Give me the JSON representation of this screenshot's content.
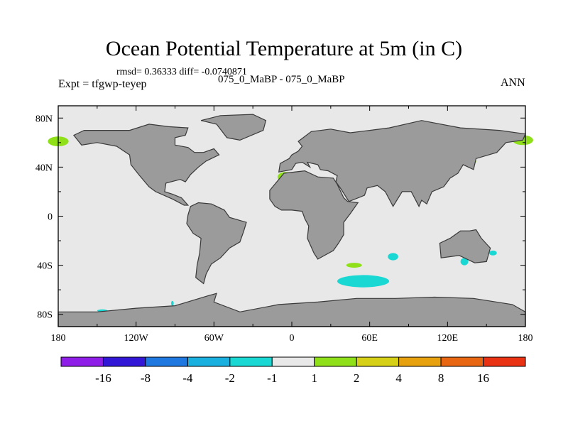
{
  "title": "Ocean Potential Temperature at 5m (in C)",
  "stats_line": "rmsd= 0.36333 diff= -0.0740871",
  "experiment_label": "Expt = tfgwp-teyep",
  "case_label": "075_0_MaBP - 075_0_MaBP",
  "season_label": "ANN",
  "chart_data": {
    "type": "heatmap",
    "projection": "cylindrical-equidistant",
    "xlim": [
      -180,
      180
    ],
    "ylim": [
      -90,
      90
    ],
    "x_ticks": [
      {
        "value": -180,
        "label": "180"
      },
      {
        "value": -120,
        "label": "120W"
      },
      {
        "value": -60,
        "label": "60W"
      },
      {
        "value": 0,
        "label": "0"
      },
      {
        "value": 60,
        "label": "60E"
      },
      {
        "value": 120,
        "label": "120E"
      },
      {
        "value": 180,
        "label": "180"
      }
    ],
    "y_ticks": [
      {
        "value": 80,
        "label": "80N"
      },
      {
        "value": 40,
        "label": "40N"
      },
      {
        "value": 0,
        "label": "0"
      },
      {
        "value": -40,
        "label": "40S"
      },
      {
        "value": -80,
        "label": "80S"
      }
    ],
    "colorbar": {
      "colors": [
        "#8f1fe8",
        "#3218d6",
        "#1f78e0",
        "#19b0e0",
        "#19d8d3",
        "#e8e8e8",
        "#8fe019",
        "#d6d017",
        "#e8a10e",
        "#e86511",
        "#e83213"
      ],
      "labels": [
        "-16",
        "-8",
        "-4",
        "-2",
        "-1",
        "1",
        "2",
        "4",
        "8",
        "16"
      ]
    },
    "land_color": "#9b9b9b",
    "ocean_color": "#e8e8e8",
    "land_masses": [
      {
        "name": "North America",
        "lonlat": [
          [
            -168,
            66
          ],
          [
            -160,
            70
          ],
          [
            -140,
            70
          ],
          [
            -125,
            70
          ],
          [
            -110,
            75
          ],
          [
            -95,
            73
          ],
          [
            -80,
            72
          ],
          [
            -82,
            66
          ],
          [
            -90,
            64
          ],
          [
            -90,
            58
          ],
          [
            -80,
            56
          ],
          [
            -75,
            52
          ],
          [
            -68,
            52
          ],
          [
            -60,
            55
          ],
          [
            -56,
            50
          ],
          [
            -66,
            45
          ],
          [
            -72,
            40
          ],
          [
            -78,
            34
          ],
          [
            -82,
            28
          ],
          [
            -86,
            30
          ],
          [
            -97,
            27
          ],
          [
            -98,
            20
          ],
          [
            -92,
            18
          ],
          [
            -85,
            15
          ],
          [
            -80,
            9
          ],
          [
            -83,
            9
          ],
          [
            -92,
            14
          ],
          [
            -105,
            20
          ],
          [
            -110,
            24
          ],
          [
            -118,
            34
          ],
          [
            -124,
            42
          ],
          [
            -125,
            50
          ],
          [
            -135,
            57
          ],
          [
            -150,
            60
          ],
          [
            -162,
            58
          ]
        ]
      },
      {
        "name": "Greenland",
        "lonlat": [
          [
            -70,
            78
          ],
          [
            -55,
            82
          ],
          [
            -30,
            83
          ],
          [
            -20,
            78
          ],
          [
            -22,
            70
          ],
          [
            -40,
            62
          ],
          [
            -50,
            64
          ],
          [
            -58,
            75
          ]
        ]
      },
      {
        "name": "Eurasia",
        "lonlat": [
          [
            -10,
            36
          ],
          [
            -9,
            43
          ],
          [
            -2,
            47
          ],
          [
            0,
            50
          ],
          [
            5,
            53
          ],
          [
            8,
            57
          ],
          [
            5,
            61
          ],
          [
            15,
            69
          ],
          [
            30,
            71
          ],
          [
            45,
            68
          ],
          [
            60,
            70
          ],
          [
            75,
            72
          ],
          [
            100,
            78
          ],
          [
            130,
            72
          ],
          [
            160,
            70
          ],
          [
            180,
            67
          ],
          [
            178,
            62
          ],
          [
            165,
            60
          ],
          [
            158,
            52
          ],
          [
            142,
            47
          ],
          [
            140,
            38
          ],
          [
            132,
            42
          ],
          [
            128,
            35
          ],
          [
            122,
            31
          ],
          [
            117,
            24
          ],
          [
            108,
            20
          ],
          [
            104,
            10
          ],
          [
            100,
            13
          ],
          [
            98,
            8
          ],
          [
            92,
            20
          ],
          [
            85,
            20
          ],
          [
            78,
            8
          ],
          [
            72,
            20
          ],
          [
            66,
            25
          ],
          [
            58,
            23
          ],
          [
            56,
            17
          ],
          [
            44,
            12
          ],
          [
            38,
            22
          ],
          [
            34,
            28
          ],
          [
            35,
            33
          ],
          [
            28,
            37
          ],
          [
            22,
            38
          ],
          [
            20,
            42
          ],
          [
            12,
            44
          ],
          [
            14,
            40
          ],
          [
            8,
            44
          ],
          [
            3,
            43
          ],
          [
            0,
            38
          ]
        ]
      },
      {
        "name": "Africa",
        "lonlat": [
          [
            -17,
            21
          ],
          [
            -10,
            30
          ],
          [
            -6,
            35
          ],
          [
            10,
            37
          ],
          [
            20,
            32
          ],
          [
            32,
            31
          ],
          [
            35,
            26
          ],
          [
            40,
            15
          ],
          [
            43,
            12
          ],
          [
            51,
            11
          ],
          [
            45,
            2
          ],
          [
            40,
            -5
          ],
          [
            40,
            -15
          ],
          [
            36,
            -22
          ],
          [
            32,
            -28
          ],
          [
            20,
            -35
          ],
          [
            17,
            -30
          ],
          [
            12,
            -18
          ],
          [
            13,
            -8
          ],
          [
            10,
            -2
          ],
          [
            8,
            4
          ],
          [
            0,
            5
          ],
          [
            -8,
            5
          ],
          [
            -13,
            8
          ],
          [
            -17,
            14
          ]
        ]
      },
      {
        "name": "South America",
        "lonlat": [
          [
            -78,
            8
          ],
          [
            -72,
            11
          ],
          [
            -62,
            10
          ],
          [
            -52,
            5
          ],
          [
            -48,
            -1
          ],
          [
            -35,
            -5
          ],
          [
            -37,
            -12
          ],
          [
            -40,
            -21
          ],
          [
            -48,
            -26
          ],
          [
            -55,
            -34
          ],
          [
            -62,
            -39
          ],
          [
            -66,
            -47
          ],
          [
            -68,
            -55
          ],
          [
            -74,
            -50
          ],
          [
            -73,
            -40
          ],
          [
            -71,
            -30
          ],
          [
            -70,
            -18
          ],
          [
            -76,
            -14
          ],
          [
            -81,
            -6
          ],
          [
            -80,
            1
          ]
        ]
      },
      {
        "name": "Australia",
        "lonlat": [
          [
            114,
            -22
          ],
          [
            122,
            -18
          ],
          [
            130,
            -12
          ],
          [
            137,
            -12
          ],
          [
            142,
            -11
          ],
          [
            146,
            -18
          ],
          [
            153,
            -26
          ],
          [
            150,
            -37
          ],
          [
            141,
            -38
          ],
          [
            135,
            -35
          ],
          [
            129,
            -32
          ],
          [
            115,
            -34
          ]
        ]
      },
      {
        "name": "Antarctica",
        "lonlat": [
          [
            -180,
            -90
          ],
          [
            -180,
            -78
          ],
          [
            -150,
            -78
          ],
          [
            -120,
            -75
          ],
          [
            -90,
            -73
          ],
          [
            -65,
            -65
          ],
          [
            -58,
            -63
          ],
          [
            -60,
            -70
          ],
          [
            -40,
            -78
          ],
          [
            -10,
            -72
          ],
          [
            20,
            -70
          ],
          [
            50,
            -67
          ],
          [
            80,
            -67
          ],
          [
            110,
            -66
          ],
          [
            140,
            -67
          ],
          [
            170,
            -72
          ],
          [
            180,
            -78
          ],
          [
            180,
            -90
          ]
        ]
      }
    ],
    "anomaly_patches": [
      {
        "name": "north-pacific-west",
        "category": "2",
        "center": [
          -180,
          61
        ],
        "radius": [
          8,
          4
        ]
      },
      {
        "name": "north-pacific-east",
        "category": "2",
        "center": [
          178,
          62
        ],
        "radius": [
          8,
          4
        ]
      },
      {
        "name": "mediterranean",
        "category": "2",
        "center": [
          -5,
          32
        ],
        "radius": [
          6,
          4
        ]
      },
      {
        "name": "western-pacific",
        "category": "2",
        "center": [
          138,
          45
        ],
        "radius": [
          4,
          4
        ]
      },
      {
        "name": "madagascar-east",
        "category": "2",
        "center": [
          48,
          -40
        ],
        "radius": [
          6,
          2
        ]
      },
      {
        "name": "australia-south",
        "category": "2",
        "center": [
          143,
          -33
        ],
        "radius": [
          1,
          1
        ]
      },
      {
        "name": "southern-ocean",
        "category": "-1",
        "center": [
          55,
          -53
        ],
        "radius": [
          20,
          5
        ]
      },
      {
        "name": "indian-east",
        "category": "-1",
        "center": [
          78,
          -33
        ],
        "radius": [
          4,
          3
        ]
      },
      {
        "name": "australia-east",
        "category": "-1",
        "center": [
          133,
          -37
        ],
        "radius": [
          3,
          3
        ]
      },
      {
        "name": "tasman",
        "category": "-1",
        "center": [
          155,
          -30
        ],
        "radius": [
          3,
          2
        ]
      },
      {
        "name": "south-pacific-islet",
        "category": "-1",
        "center": [
          -92,
          -71
        ],
        "radius": [
          1,
          2
        ]
      },
      {
        "name": "amundsen-sea",
        "category": "-1",
        "center": [
          -146,
          -77
        ],
        "radius": [
          4,
          1
        ]
      }
    ]
  }
}
